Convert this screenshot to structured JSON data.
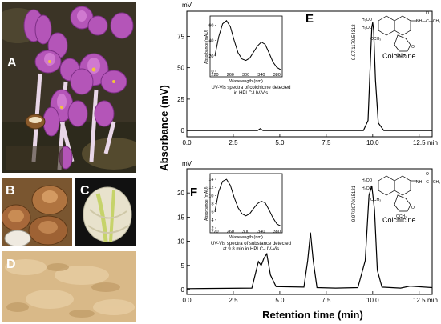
{
  "photos": {
    "A": {
      "label": "A"
    },
    "B": {
      "label": "B"
    },
    "C": {
      "label": "C"
    },
    "D": {
      "label": "D"
    }
  },
  "axes": {
    "y_title": "Absorbance (mV)",
    "x_title": "Retention time (min)",
    "unit_mv": "mV",
    "x_ticks": [
      "0.0",
      "2.5",
      "5.0",
      "7.5",
      "10.0",
      "12.5",
      "min"
    ],
    "y_ticks_E": [
      "0",
      "25",
      "50",
      "75"
    ],
    "y_ticks_F": [
      "0",
      "5",
      "10",
      "15",
      "20"
    ]
  },
  "panels": {
    "E": {
      "letter": "E",
      "compound": "Colchicine",
      "peak_label": "9.97/1170/54312",
      "inset_caption_1": "UV-Vis spectra of colchicine detected",
      "inset_caption_2": "in HPLC-UV-Vis",
      "inset_ylabel": "Absorbance (mAU)",
      "inset_xlabel": "Wavelength (nm)",
      "inset_x_ticks": [
        "220",
        "260",
        "300",
        "340",
        "380"
      ],
      "inset_y_ticks": [
        "0",
        "20",
        "40",
        "60"
      ]
    },
    "F": {
      "letter": "F",
      "compound": "Colchicine",
      "peak_label": "9.97/2070/15121",
      "inset_caption_1": "UV-Vis spectra of  substance  detected",
      "inset_caption_2": "at 9.8 min in HPLC-UV-Vis",
      "inset_ylabel": "Absorbance (mAU)",
      "inset_xlabel": "Wavelength (nm)",
      "inset_x_ticks": [
        "220",
        "260",
        "300",
        "340",
        "380"
      ],
      "inset_y_ticks": [
        "2",
        "4",
        "6",
        "8",
        "10",
        "12",
        "14"
      ]
    }
  },
  "chemistry": {
    "groups_left": [
      "H₃CO",
      "H₃CO",
      "OCH₃"
    ],
    "amide": "NH—C—CH₃",
    "carbonyl_o": "O",
    "ring_o": "O",
    "ring_och3": "OCH₃"
  },
  "chart_data": [
    {
      "type": "line",
      "panel": "E",
      "xlabel": "Retention time (min)",
      "ylabel": "Absorbance (mV)",
      "xlim": [
        0,
        13.2
      ],
      "ylim": [
        -5,
        95
      ],
      "series": [
        {
          "x": [
            0,
            3.8,
            3.95,
            4.1,
            9.5,
            9.75,
            9.85,
            9.95,
            10.0,
            10.05,
            10.15,
            10.3,
            10.6,
            13.2
          ],
          "y": [
            0,
            0,
            1.5,
            0,
            0,
            8,
            45,
            82,
            86,
            80,
            40,
            6,
            0,
            0
          ]
        }
      ]
    },
    {
      "type": "line",
      "panel": "F",
      "xlabel": "Retention time (min)",
      "ylabel": "Absorbance (mV)",
      "xlim": [
        0,
        13.2
      ],
      "ylim": [
        -1,
        25
      ],
      "series": [
        {
          "x": [
            0,
            3.5,
            3.85,
            4.0,
            4.15,
            4.3,
            4.5,
            4.8,
            6.3,
            6.5,
            6.65,
            6.8,
            7.0,
            8.0,
            9.2,
            9.6,
            9.8,
            9.95,
            10.1,
            10.25,
            10.5,
            11.5,
            12.0,
            13.2
          ],
          "y": [
            0.2,
            0.3,
            5.8,
            5.0,
            6.5,
            7.4,
            3.0,
            0.6,
            0.5,
            6.0,
            11.8,
            6.0,
            0.4,
            0.3,
            0.4,
            6.0,
            19.5,
            21.5,
            16.5,
            4.0,
            0.5,
            0.3,
            0.7,
            0.4
          ]
        }
      ]
    },
    {
      "type": "line",
      "panel": "E-inset",
      "xlabel": "Wavelength (nm)",
      "ylabel": "Absorbance (mAU)",
      "xlim": [
        220,
        390
      ],
      "ylim": [
        0,
        70
      ],
      "series": [
        {
          "x": [
            220,
            230,
            240,
            250,
            260,
            270,
            280,
            290,
            300,
            310,
            320,
            330,
            340,
            350,
            360,
            370,
            380,
            390
          ],
          "y": [
            20,
            45,
            62,
            66,
            58,
            40,
            24,
            16,
            14,
            17,
            25,
            33,
            38,
            35,
            24,
            12,
            5,
            2
          ]
        }
      ]
    },
    {
      "type": "line",
      "panel": "F-inset",
      "xlabel": "Wavelength (nm)",
      "ylabel": "Absorbance (mAU)",
      "xlim": [
        220,
        390
      ],
      "ylim": [
        2,
        15
      ],
      "series": [
        {
          "x": [
            220,
            230,
            240,
            250,
            260,
            270,
            280,
            290,
            300,
            310,
            320,
            330,
            340,
            350,
            360,
            370,
            380,
            390
          ],
          "y": [
            6,
            11,
            13.5,
            14,
            12.5,
            9.5,
            7,
            5.5,
            5,
            5.5,
            6.8,
            8,
            8.6,
            8.2,
            6.5,
            4.5,
            3,
            2.5
          ]
        }
      ]
    }
  ]
}
